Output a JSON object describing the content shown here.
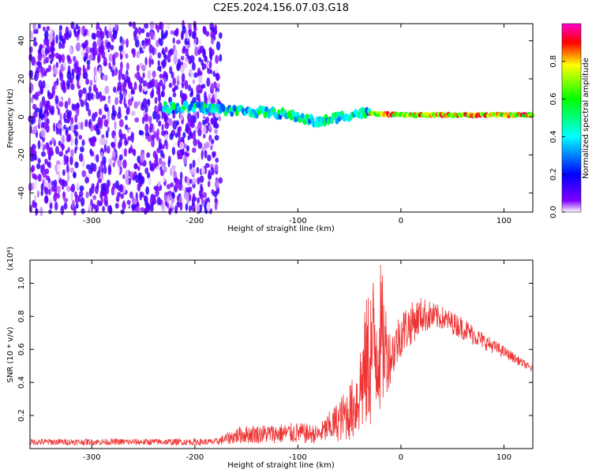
{
  "title": "C2E5.2024.156.07.03.G18",
  "chart_data": [
    {
      "type": "heatmap",
      "xlabel": "Height of straight line (km)",
      "ylabel": "Frequency (Hz)",
      "xlim": [
        -360,
        128
      ],
      "ylim": [
        -50,
        49
      ],
      "xticks": [
        -300,
        -200,
        -100,
        0,
        100
      ],
      "yticks": [
        -40,
        -20,
        0,
        20,
        40
      ],
      "colorbar": {
        "label": "Normalized spectral amplitude",
        "range": [
          0,
          1
        ],
        "ticks": [
          "0.0",
          "0.2",
          "0.4",
          "0.6",
          "0.8"
        ],
        "colormap": [
          "#ffffff",
          "#8000ff",
          "#0000ff",
          "#00ffff",
          "#00ff00",
          "#ffff00",
          "#ff0000",
          "#ff00ff"
        ]
      },
      "features": {
        "noise_region_x": [
          -360,
          -175
        ],
        "noise_amplitude": 0.2,
        "signal_track": [
          {
            "x": -230,
            "f": 5
          },
          {
            "x": -200,
            "f": 5
          },
          {
            "x": -150,
            "f": 3
          },
          {
            "x": -120,
            "f": 2
          },
          {
            "x": -100,
            "f": 0
          },
          {
            "x": -80,
            "f": -3
          },
          {
            "x": -60,
            "f": 0
          },
          {
            "x": -40,
            "f": 2
          },
          {
            "x": 0,
            "f": 1
          },
          {
            "x": 50,
            "f": 1
          },
          {
            "x": 128,
            "f": 1
          }
        ],
        "peak_amplitude_x": [
          -30,
          128
        ]
      }
    },
    {
      "type": "line",
      "xlabel": "Height of straight line (km)",
      "ylabel": "SNR (10 * v/v)",
      "y_multiplier": "(x10⁴)",
      "xlim": [
        -360,
        128
      ],
      "ylim": [
        0,
        1.14
      ],
      "xticks": [
        -300,
        -200,
        -100,
        0,
        100
      ],
      "yticks": [
        "0.2",
        "0.4",
        "0.6",
        "0.8",
        "1.0"
      ],
      "color": "#ee3333",
      "series": [
        {
          "envelope": [
            {
              "x": -360,
              "lo": 0.02,
              "hi": 0.06
            },
            {
              "x": -280,
              "lo": 0.02,
              "hi": 0.06
            },
            {
              "x": -180,
              "lo": 0.02,
              "hi": 0.06
            },
            {
              "x": -155,
              "lo": 0.03,
              "hi": 0.14
            },
            {
              "x": -120,
              "lo": 0.03,
              "hi": 0.15
            },
            {
              "x": -100,
              "lo": 0.03,
              "hi": 0.16
            },
            {
              "x": -80,
              "lo": 0.03,
              "hi": 0.14
            },
            {
              "x": -60,
              "lo": 0.04,
              "hi": 0.3
            },
            {
              "x": -45,
              "lo": 0.05,
              "hi": 0.45
            },
            {
              "x": -30,
              "lo": 0.1,
              "hi": 1.05
            },
            {
              "x": -20,
              "lo": 0.2,
              "hi": 1.14
            },
            {
              "x": -10,
              "lo": 0.4,
              "hi": 0.7
            },
            {
              "x": 0,
              "lo": 0.55,
              "hi": 0.85
            },
            {
              "x": 20,
              "lo": 0.7,
              "hi": 0.92
            },
            {
              "x": 40,
              "lo": 0.72,
              "hi": 0.86
            },
            {
              "x": 60,
              "lo": 0.66,
              "hi": 0.8
            },
            {
              "x": 80,
              "lo": 0.6,
              "hi": 0.7
            },
            {
              "x": 100,
              "lo": 0.55,
              "hi": 0.62
            },
            {
              "x": 128,
              "lo": 0.46,
              "hi": 0.5
            }
          ]
        }
      ]
    }
  ]
}
